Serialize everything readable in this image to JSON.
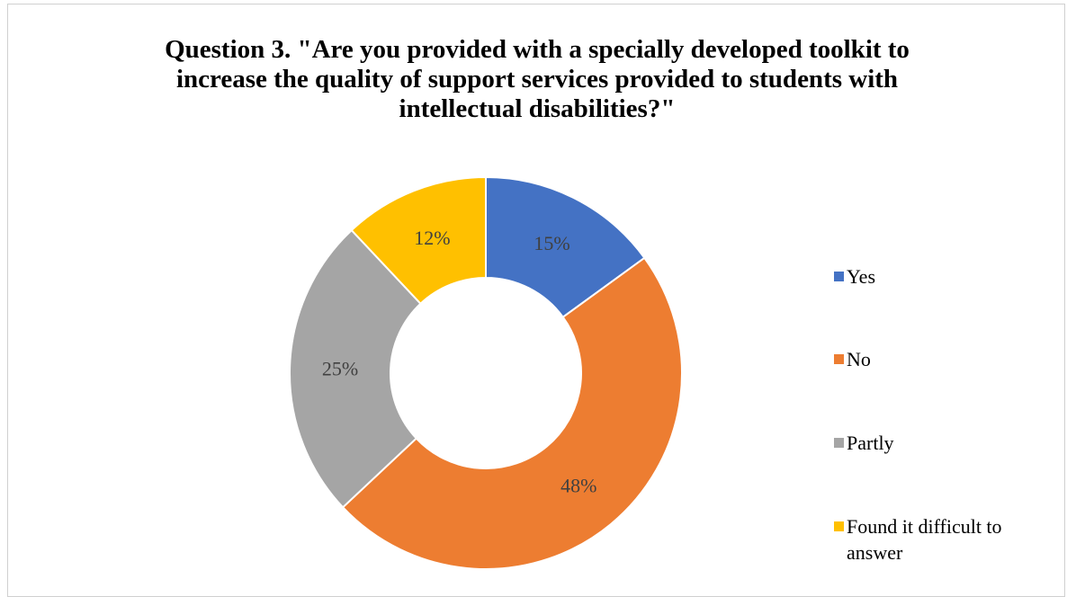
{
  "chart_data": {
    "type": "pie",
    "donut": true,
    "title_lines": [
      "Question 3. \"Are you provided with a specially developed toolkit to",
      "increase the quality of support services provided to students with",
      "intellectual disabilities?\""
    ],
    "categories": [
      "Yes",
      "No",
      "Partly",
      "Found it difficult to answer"
    ],
    "values": [
      15,
      48,
      25,
      12
    ],
    "data_labels": [
      "15%",
      "48%",
      "25%",
      "12%"
    ],
    "colors": [
      "#4472c4",
      "#ed7d31",
      "#a5a5a5",
      "#ffc000"
    ],
    "legend_position": "right",
    "legend_labels": [
      "Yes",
      "No",
      "Partly",
      "Found it difficult to answer"
    ]
  }
}
